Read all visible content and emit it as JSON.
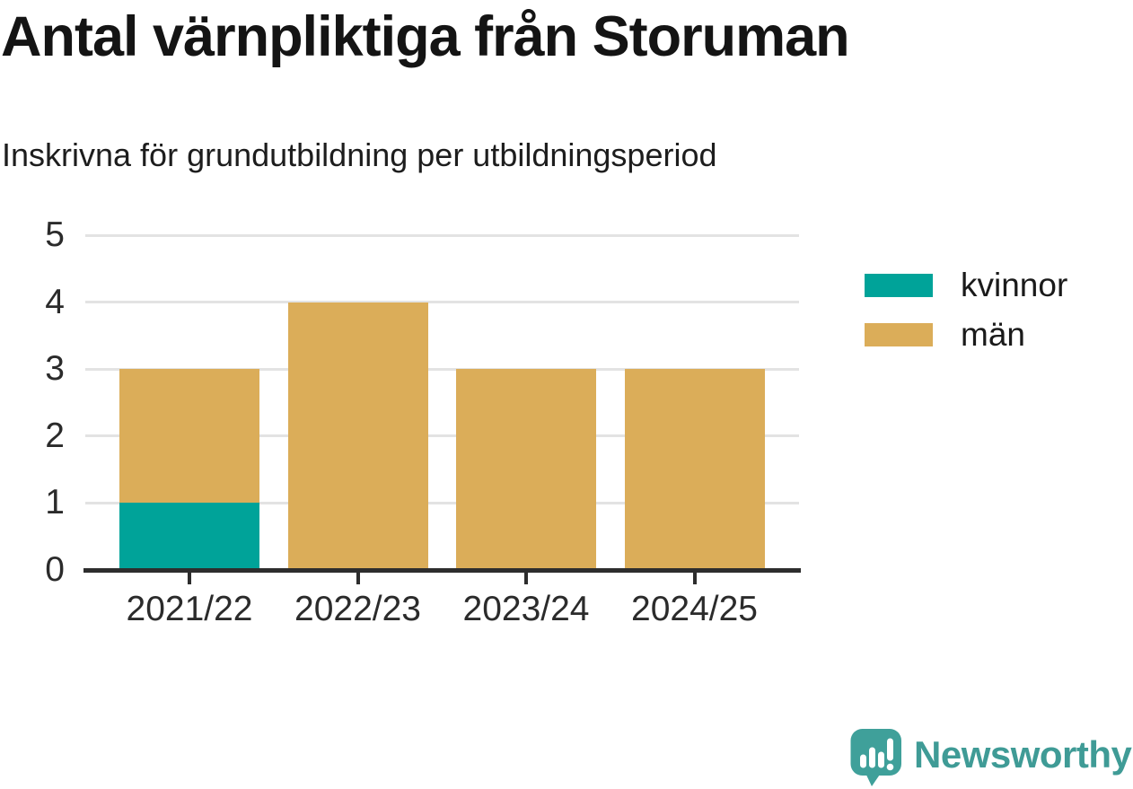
{
  "title": "Antal värnpliktiga från Storuman",
  "subtitle": "Inskrivna för grundutbildning per utbildningsperiod",
  "chart_data": {
    "type": "bar",
    "stacked": true,
    "categories": [
      "2021/22",
      "2022/23",
      "2023/24",
      "2024/25"
    ],
    "series": [
      {
        "name": "kvinnor",
        "color": "#00a399",
        "values": [
          1,
          0,
          0,
          0
        ]
      },
      {
        "name": "män",
        "color": "#dbad59",
        "values": [
          2,
          4,
          3,
          3
        ]
      }
    ],
    "title": "Antal värnpliktiga från Storuman",
    "subtitle": "Inskrivna för grundutbildning per utbildningsperiod",
    "xlabel": "",
    "ylabel": "",
    "ylim": [
      0,
      5
    ],
    "yticks": [
      "0",
      "1",
      "2",
      "3",
      "4",
      "5"
    ],
    "grid": true,
    "legend_position": "right"
  },
  "legend": {
    "items": [
      {
        "label": "kvinnor",
        "color": "#00a399"
      },
      {
        "label": "män",
        "color": "#dbad59"
      }
    ]
  },
  "branding": {
    "wordmark": "Newsworthy",
    "logo_icon": "newsworthy-chart-bubble-icon",
    "brand_color": "#3f9b96"
  },
  "colors": {
    "kvinnor": "#00a399",
    "man": "#dbad59",
    "axis": "#2d2d2d",
    "gridline": "#e3e3e3",
    "text": "#1a1a1a"
  }
}
